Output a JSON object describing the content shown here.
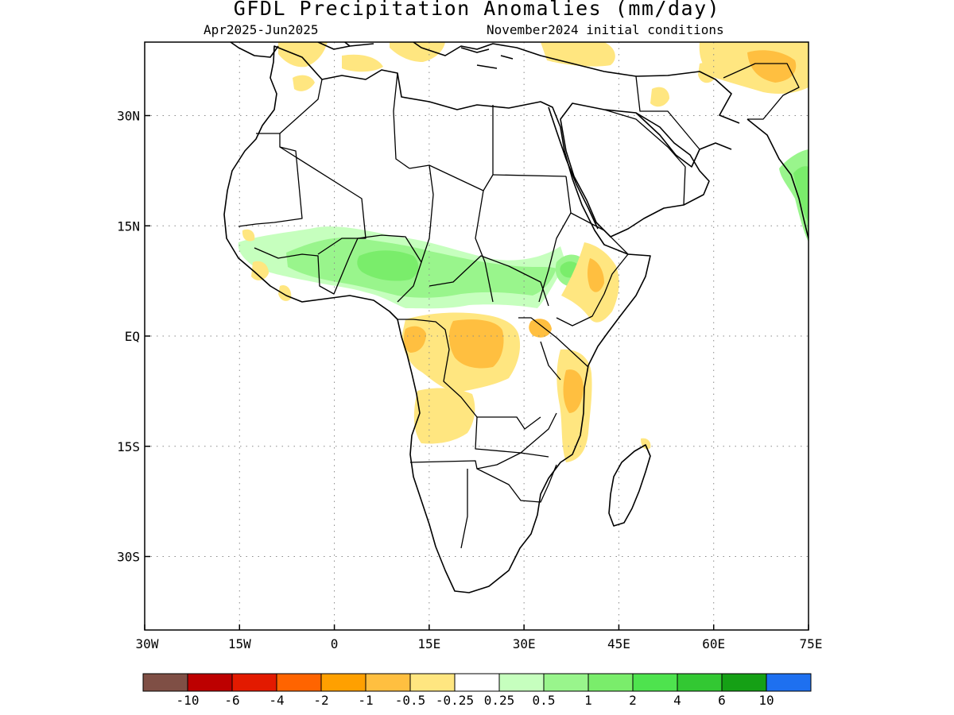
{
  "title": "GFDL Precipitation Anomalies (mm/day)",
  "subtitle_left": "Apr2025-Jun2025",
  "subtitle_right": "November2024 initial conditions",
  "map": {
    "lon_range": [
      -30,
      75
    ],
    "lat_range": [
      -40,
      40
    ],
    "x_ticks": [
      {
        "value": -30,
        "label": "30W"
      },
      {
        "value": -15,
        "label": "15W"
      },
      {
        "value": 0,
        "label": "0"
      },
      {
        "value": 15,
        "label": "15E"
      },
      {
        "value": 30,
        "label": "30E"
      },
      {
        "value": 45,
        "label": "45E"
      },
      {
        "value": 60,
        "label": "60E"
      },
      {
        "value": 75,
        "label": "75E"
      }
    ],
    "y_ticks": [
      {
        "value": 30,
        "label": "30N"
      },
      {
        "value": 15,
        "label": "15N"
      },
      {
        "value": 0,
        "label": "EQ"
      },
      {
        "value": -15,
        "label": "15S"
      },
      {
        "value": -30,
        "label": "30S"
      }
    ],
    "grid": "dotted",
    "colors": {
      "dry_weak": "#ffe680",
      "dry_moderate": "#ffbf40",
      "wet_weak": "#c6ffbe",
      "wet_light": "#99f58c",
      "wet_moderate": "#7aed6b"
    }
  },
  "colorbar": {
    "colors": [
      "#7f4f45",
      "#bd0000",
      "#e31a00",
      "#ff6400",
      "#ffa000",
      "#ffbf40",
      "#ffe680",
      "#ffffff",
      "#c6ffbe",
      "#99f58c",
      "#7aed6b",
      "#4ee34e",
      "#33c833",
      "#15a015",
      "#1e70f0"
    ],
    "labels": [
      "-10",
      "-6",
      "-4",
      "-2",
      "-1",
      "-0.5",
      "-0.25",
      "0.25",
      "0.5",
      "1",
      "2",
      "4",
      "6",
      "10"
    ]
  }
}
